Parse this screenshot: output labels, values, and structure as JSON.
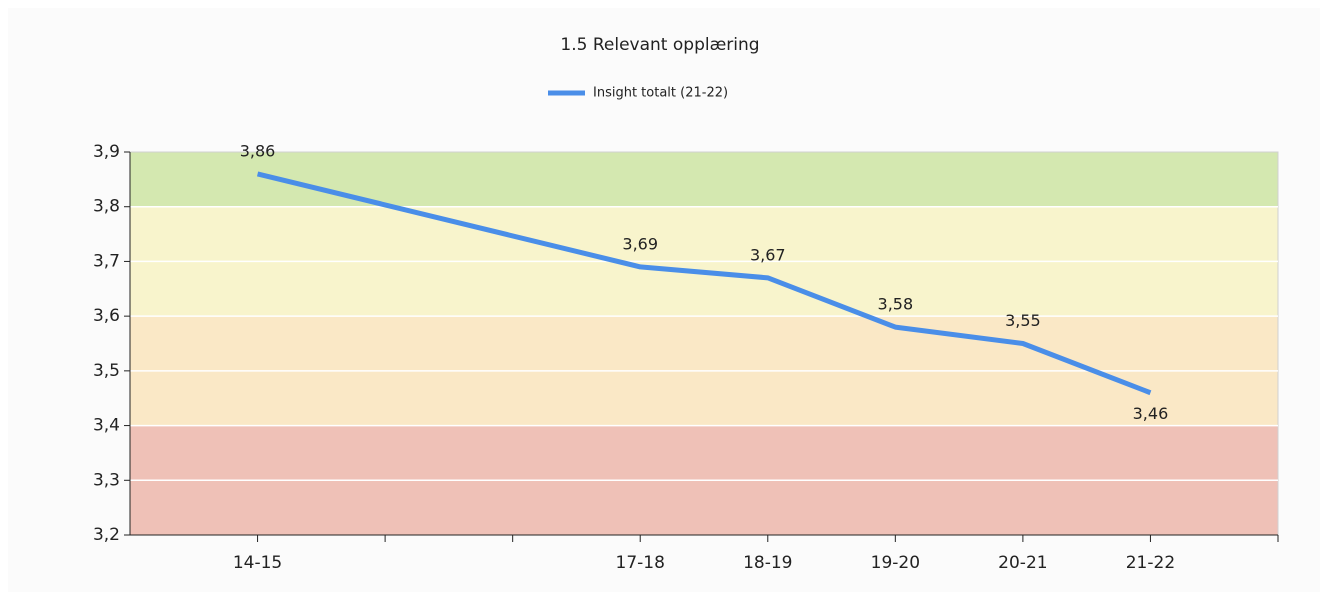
{
  "chart_data": {
    "type": "line",
    "title": "1.5 Relevant opplæring",
    "series": [
      {
        "name": "Insight totalt (21-22)",
        "color": "#4a8ee8",
        "x": [
          1,
          4,
          5,
          6,
          7,
          8
        ],
        "values": [
          3.86,
          3.69,
          3.67,
          3.58,
          3.55,
          3.46
        ],
        "value_labels": [
          "3,86",
          "3,69",
          "3,67",
          "3,58",
          "3,55",
          "3,46"
        ]
      }
    ],
    "xlim": [
      0,
      9
    ],
    "xticks": [
      {
        "value": 1,
        "label": "14-15"
      },
      {
        "value": 4,
        "label": "17-18"
      },
      {
        "value": 5,
        "label": "18-19"
      },
      {
        "value": 6,
        "label": "19-20"
      },
      {
        "value": 7,
        "label": "20-21"
      },
      {
        "value": 8,
        "label": "21-22"
      }
    ],
    "xminorticks": [
      2,
      3,
      9
    ],
    "ylim": [
      3.2,
      3.9
    ],
    "yticks": [
      {
        "value": 3.2,
        "label": "3,2"
      },
      {
        "value": 3.3,
        "label": "3,3"
      },
      {
        "value": 3.4,
        "label": "3,4"
      },
      {
        "value": 3.5,
        "label": "3,5"
      },
      {
        "value": 3.6,
        "label": "3,6"
      },
      {
        "value": 3.7,
        "label": "3,7"
      },
      {
        "value": 3.8,
        "label": "3,8"
      },
      {
        "value": 3.9,
        "label": "3,9"
      }
    ],
    "bands": [
      {
        "from": 3.8,
        "to": 3.9,
        "color": "#d4e8b0"
      },
      {
        "from": 3.6,
        "to": 3.8,
        "color": "#f8f4cc"
      },
      {
        "from": 3.4,
        "to": 3.6,
        "color": "#fae8c6"
      },
      {
        "from": 3.2,
        "to": 3.4,
        "color": "#efc1b7"
      }
    ],
    "grid": true,
    "legend": "top"
  }
}
